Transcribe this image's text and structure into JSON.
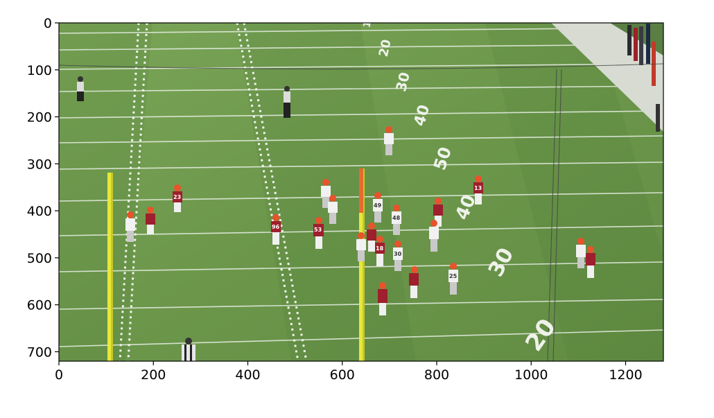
{
  "image": {
    "x_range": [
      0,
      1280
    ],
    "y_range": [
      0,
      720
    ],
    "y_inverted": true,
    "x_ticks": [
      0,
      200,
      400,
      600,
      800,
      1000,
      1200
    ],
    "y_ticks": [
      0,
      100,
      200,
      300,
      400,
      500,
      600,
      700
    ],
    "colors": {
      "field_green": "#6f9a4e",
      "field_green_dark": "#5f8a42",
      "sideline_white": "#d8dcd4",
      "home_jersey": "#9e1f2d",
      "away_jersey": "#f1f1f1",
      "helmet_trim": "#e8532b",
      "goalpost_yellow": "#e8e83a"
    },
    "field_numbers": [
      "1",
      "20",
      "30",
      "40",
      "50",
      "40",
      "30",
      "20"
    ],
    "jersey_numbers": [
      "23",
      "96",
      "53",
      "49",
      "48",
      "18",
      "30",
      "25",
      "13"
    ],
    "players": {
      "home_count": 11,
      "away_count": 11,
      "officials_count": 4
    }
  }
}
